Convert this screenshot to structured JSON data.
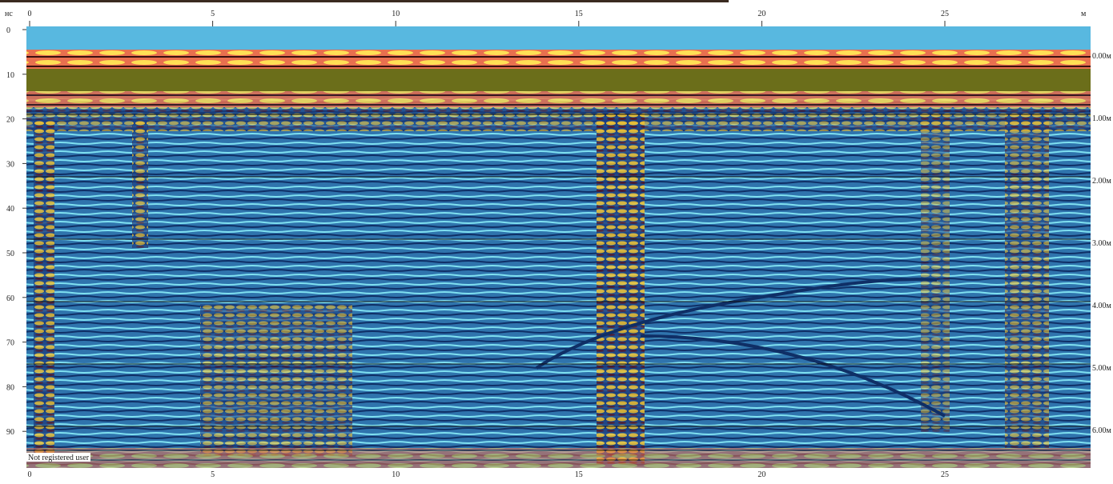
{
  "axes": {
    "time_unit": "нс",
    "distance_unit": "м",
    "distance_ticks": [
      0,
      5,
      10,
      15,
      20,
      25
    ],
    "time_ticks": [
      0,
      10,
      20,
      30,
      40,
      50,
      60,
      70,
      80,
      90
    ],
    "depth_labels": [
      "0.00м",
      "1.00м",
      "2.00м",
      "3.00м",
      "4.00м",
      "5.00м",
      "6.00м"
    ]
  },
  "watermark": "Not registered user"
}
